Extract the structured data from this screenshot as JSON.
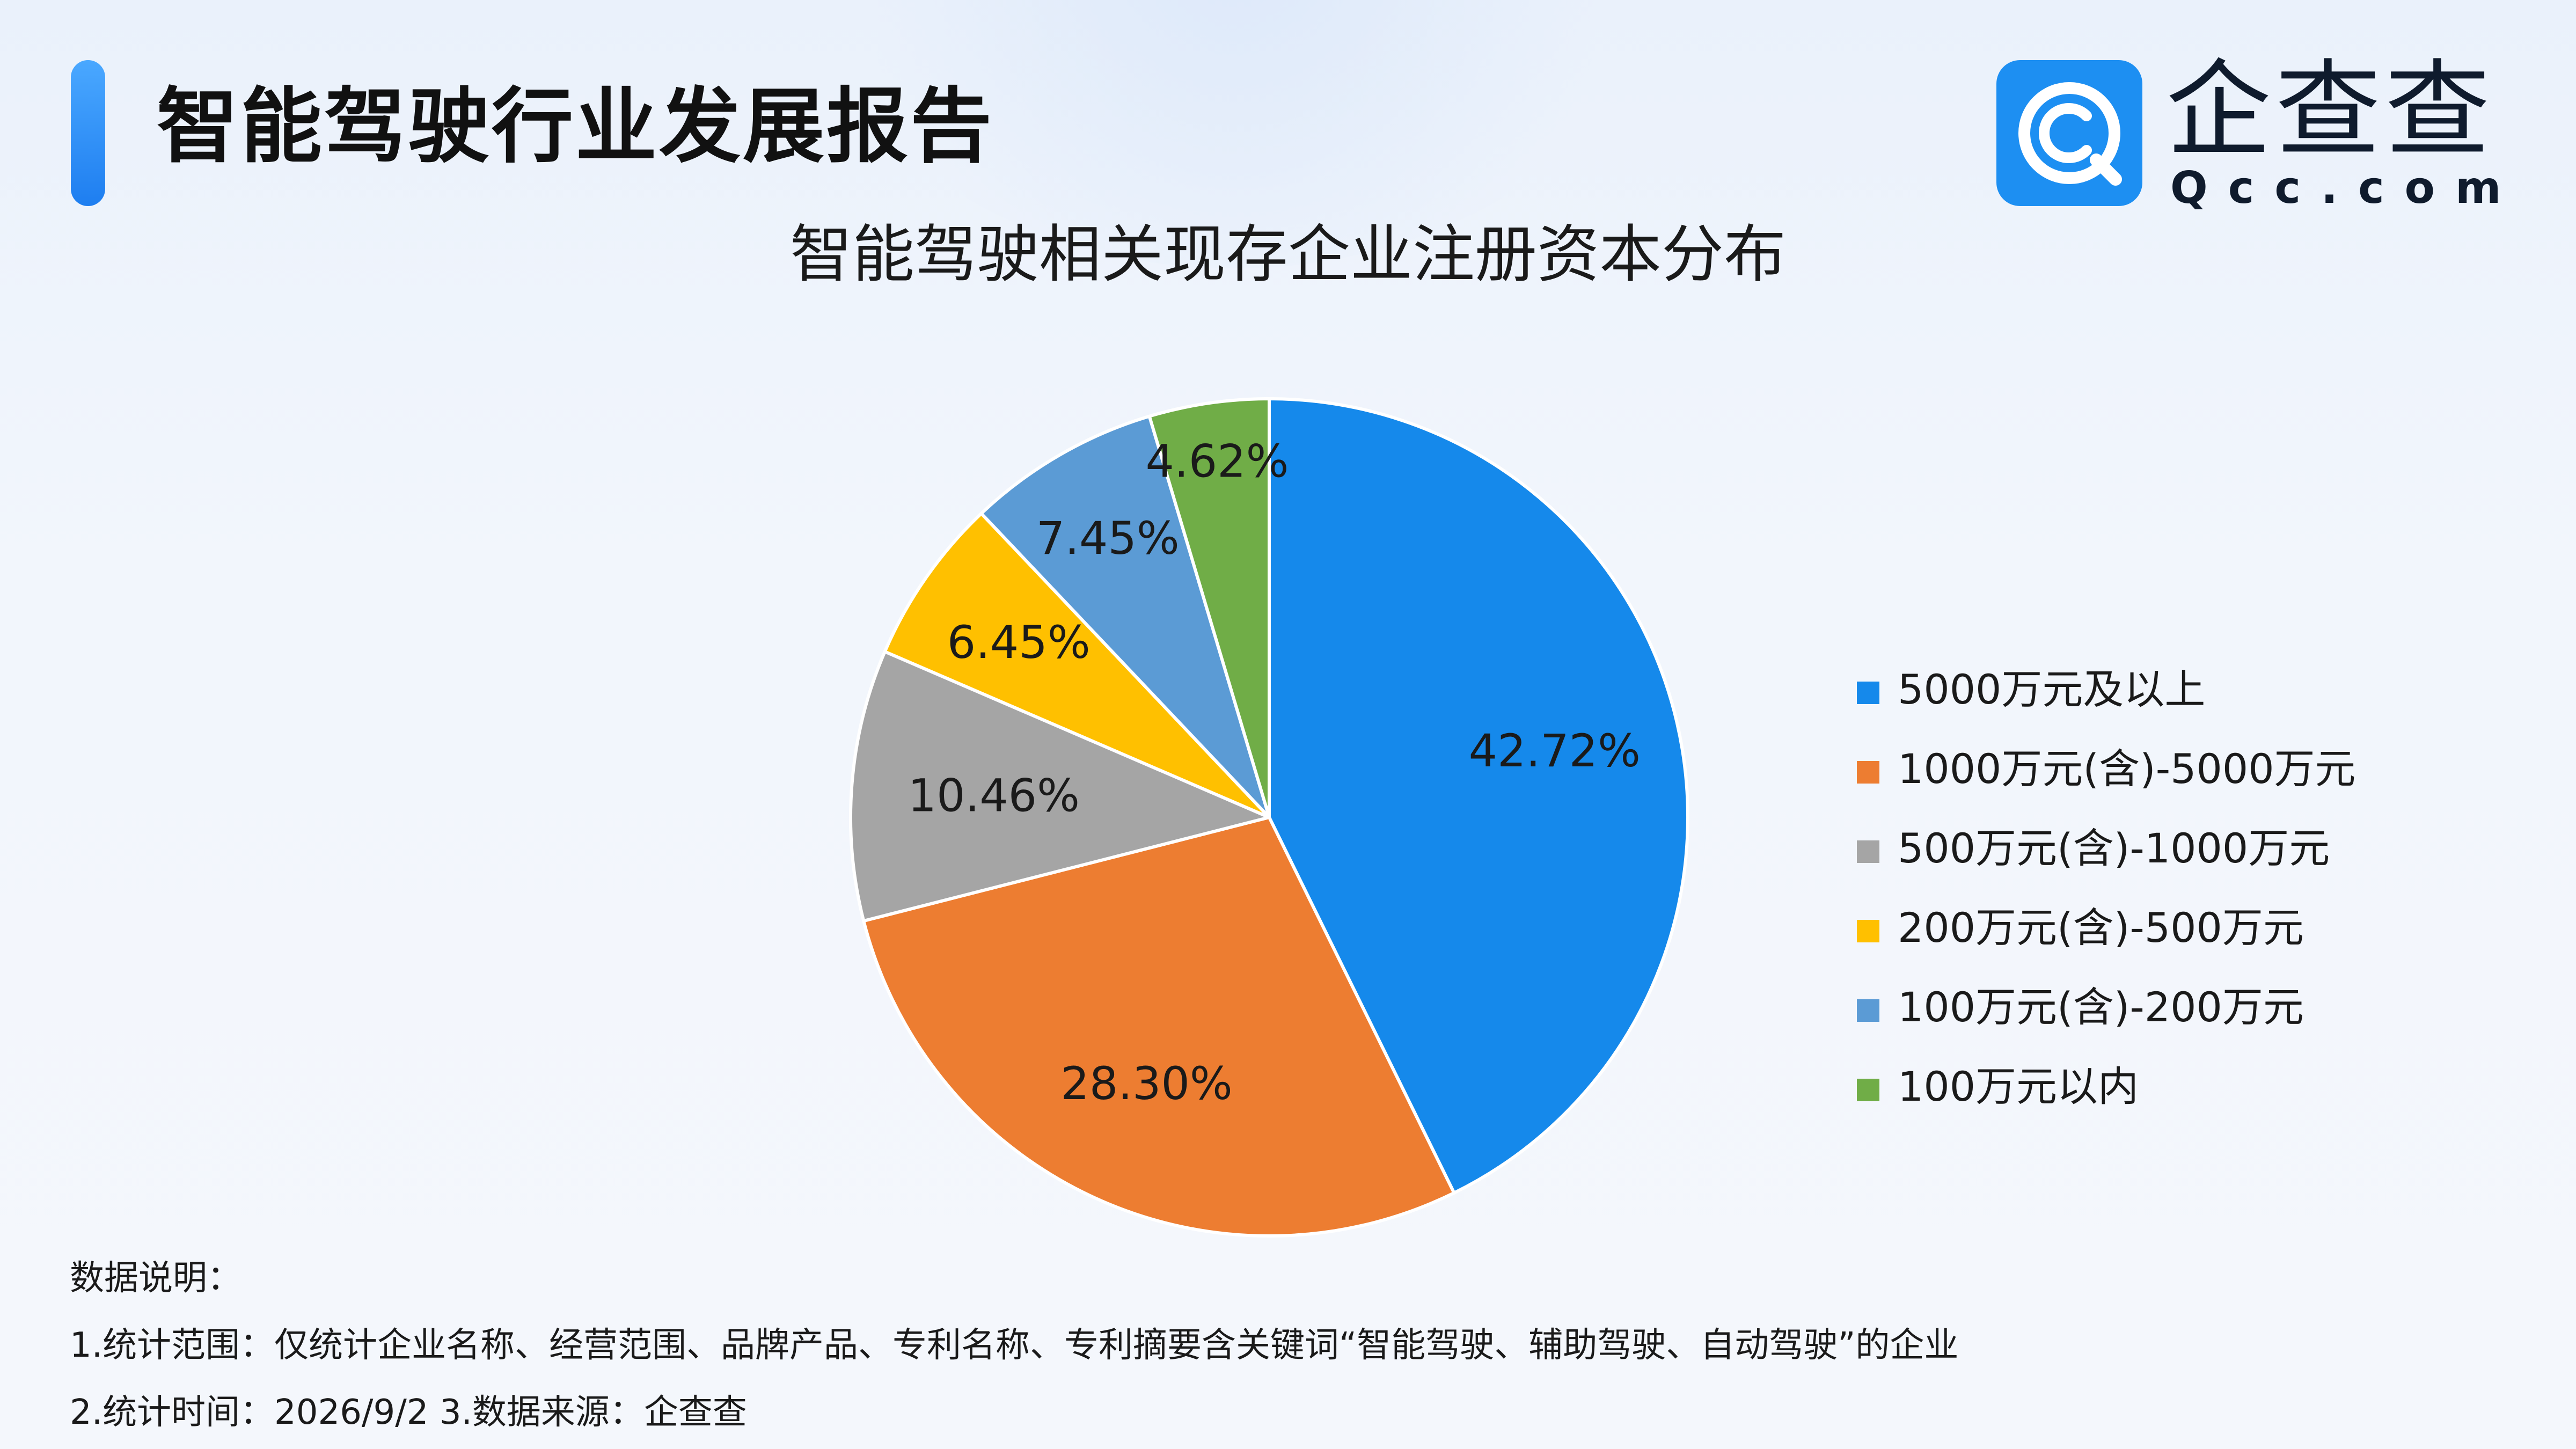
{
  "header": {
    "report_title": "智能驾驶行业发展报告",
    "logo": {
      "name": "企查查",
      "domain": "Qcc.com",
      "icon": "qcc-logo-icon",
      "brand_color": "#1d8ff2"
    }
  },
  "chart_data": {
    "type": "pie",
    "title": "智能驾驶相关现存企业注册资本分布",
    "legend_position": "right",
    "slices": [
      {
        "label": "5000万元及以上",
        "value": 42.72,
        "display": "42.72%",
        "color": "#1589eb"
      },
      {
        "label": "1000万元(含)-5000万元",
        "value": 28.3,
        "display": "28.30%",
        "color": "#ed7d31"
      },
      {
        "label": "500万元(含)-1000万元",
        "value": 10.46,
        "display": "10.46%",
        "color": "#a5a5a5"
      },
      {
        "label": "200万元(含)-500万元",
        "value": 6.45,
        "display": "6.45%",
        "color": "#ffc000"
      },
      {
        "label": "100万元(含)-200万元",
        "value": 7.45,
        "display": "7.45%",
        "color": "#5b9bd5"
      },
      {
        "label": "100万元以内",
        "value": 4.62,
        "display": "4.62%",
        "color": "#70ad47"
      }
    ]
  },
  "notes": {
    "heading": "数据说明：",
    "line1": "1.统计范围：仅统计企业名称、经营范围、品牌产品、专利名称、专利摘要含关键词“智能驾驶、辅助驾驶、自动驾驶”的企业",
    "line2": "2.统计时间：2026/9/2  3.数据来源：企查查"
  }
}
